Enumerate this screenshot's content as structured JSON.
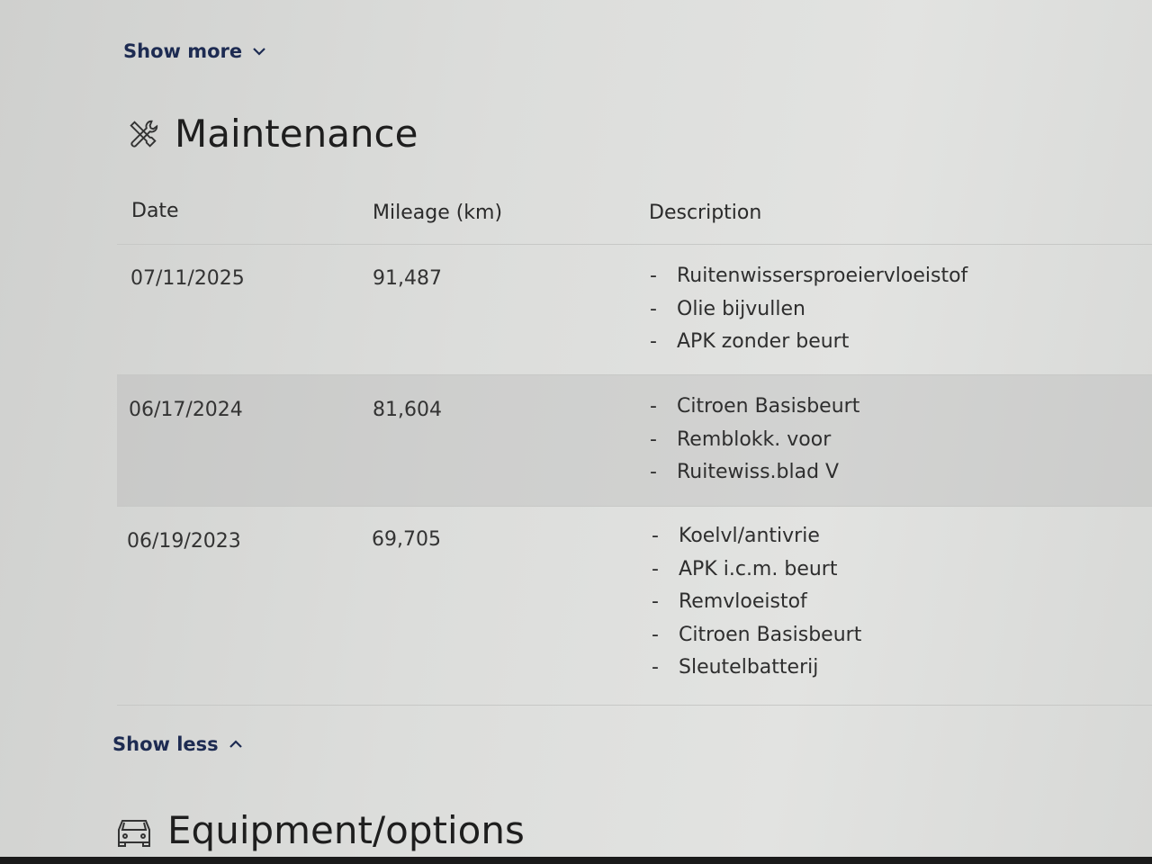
{
  "show_more": {
    "label": "Show more",
    "icon": "chevron-down-icon"
  },
  "maintenance": {
    "title": "Maintenance",
    "icon": "tools-icon",
    "columns": [
      "Date",
      "Mileage (km)",
      "Description"
    ],
    "rows": [
      {
        "date": "07/11/2025",
        "mileage": "91,487",
        "items": [
          "Ruitenwissersproeiervloeistof",
          "Olie bijvullen",
          "APK zonder beurt"
        ]
      },
      {
        "date": "06/17/2024",
        "mileage": "81,604",
        "items": [
          "Citroen Basisbeurt",
          "Remblokk. voor",
          "Ruitewiss.blad V"
        ]
      },
      {
        "date": "06/19/2023",
        "mileage": "69,705",
        "items": [
          "Koelvl/antivrie",
          "APK i.c.m. beurt",
          "Remvloeistof",
          "Citroen Basisbeurt",
          "Sleutelbatterij"
        ]
      }
    ],
    "bullet": "-"
  },
  "show_less": {
    "label": "Show less",
    "icon": "chevron-up-icon"
  },
  "equipment": {
    "title": "Equipment/options",
    "icon": "car-icon"
  }
}
